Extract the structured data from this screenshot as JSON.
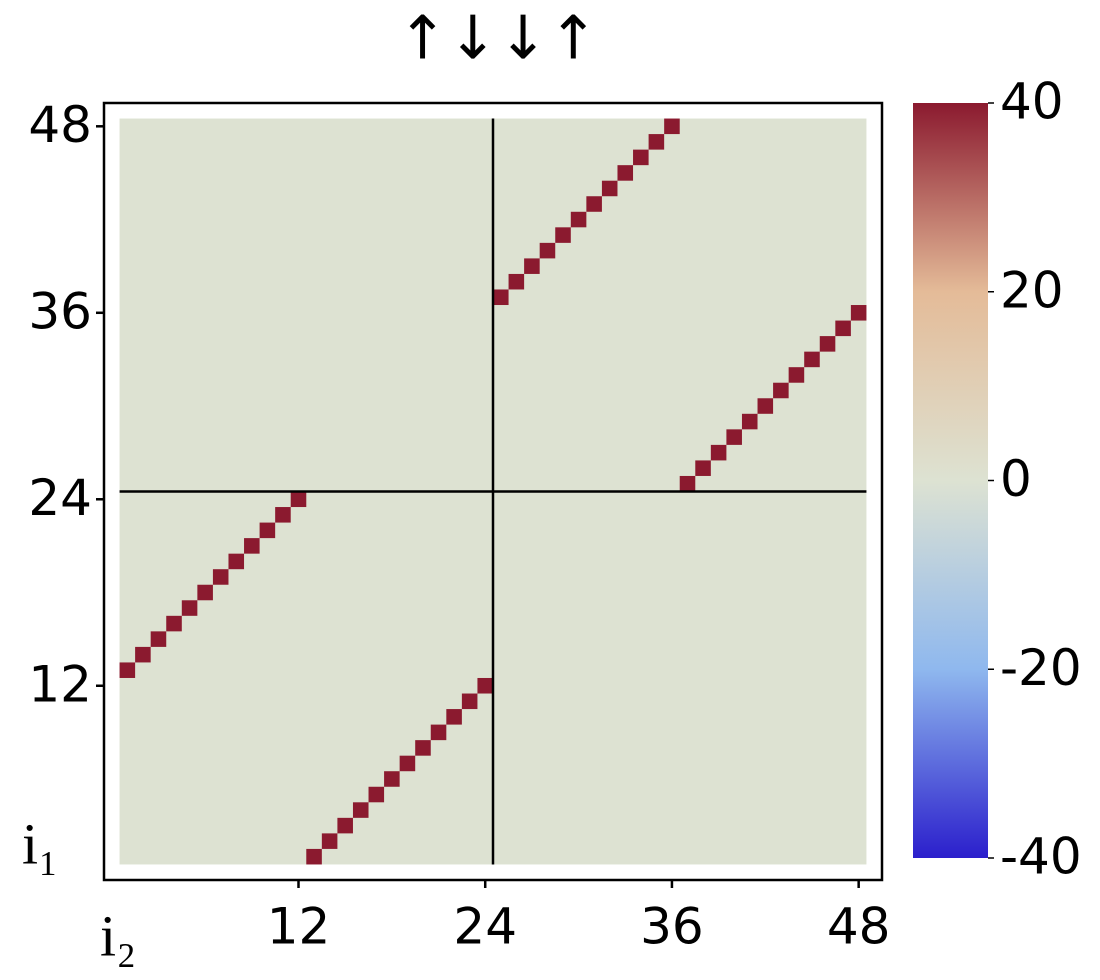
{
  "chart_data": {
    "type": "heatmap",
    "title": "↑↓↓↑",
    "x_label": "i₂",
    "y_label": "i₁",
    "x": [
      1,
      2,
      3,
      4,
      5,
      6,
      7,
      8,
      9,
      10,
      11,
      12,
      13,
      14,
      15,
      16,
      17,
      18,
      19,
      20,
      21,
      22,
      23,
      24,
      25,
      26,
      27,
      28,
      29,
      30,
      31,
      32,
      33,
      34,
      35,
      36,
      37,
      38,
      39,
      40,
      41,
      42,
      43,
      44,
      45,
      46,
      47,
      48
    ],
    "y": [
      13,
      14,
      15,
      16,
      17,
      18,
      19,
      20,
      21,
      22,
      23,
      24,
      1,
      2,
      3,
      4,
      5,
      6,
      7,
      8,
      9,
      10,
      11,
      12,
      37,
      38,
      39,
      40,
      41,
      42,
      43,
      44,
      45,
      46,
      47,
      48,
      25,
      26,
      27,
      28,
      29,
      30,
      31,
      32,
      33,
      34,
      35,
      36
    ],
    "values": [
      40,
      40,
      40,
      40,
      40,
      40,
      40,
      40,
      40,
      40,
      40,
      40,
      40,
      40,
      40,
      40,
      40,
      40,
      40,
      40,
      40,
      40,
      40,
      40,
      40,
      40,
      40,
      40,
      40,
      40,
      40,
      40,
      40,
      40,
      40,
      40,
      40,
      40,
      40,
      40,
      40,
      40,
      40,
      40,
      40,
      40,
      40,
      40
    ],
    "fill_value": 0,
    "xlim": [
      -0.5,
      49.5
    ],
    "ylim": [
      -0.5,
      49.5
    ],
    "xticks": [
      12,
      24,
      36,
      48
    ],
    "yticks": [
      12,
      24,
      36,
      48
    ],
    "clim": [
      -40,
      40
    ],
    "cticks": [
      -40,
      -20,
      0,
      20,
      40
    ],
    "colormap": [
      "#2b1fcc",
      "#8fb8ee",
      "#dde2d2",
      "#e4bb98",
      "#8b1a2f"
    ]
  }
}
